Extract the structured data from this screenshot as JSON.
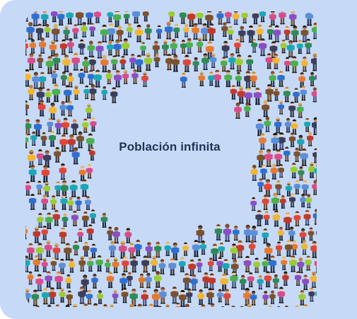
{
  "title": "Población infinita",
  "illustration": {
    "subject": "crowd-of-people",
    "background_color": "#c6daf7",
    "palette": [
      "#e0463a",
      "#2f6fd1",
      "#4bb04f",
      "#f2b630",
      "#8a4fc2",
      "#1aa7b8",
      "#e67a2e",
      "#d84c8c",
      "#3b3f5c",
      "#7a5230",
      "#9acd32",
      "#5b8fd9",
      "#c0392b",
      "#2e8b57"
    ]
  }
}
